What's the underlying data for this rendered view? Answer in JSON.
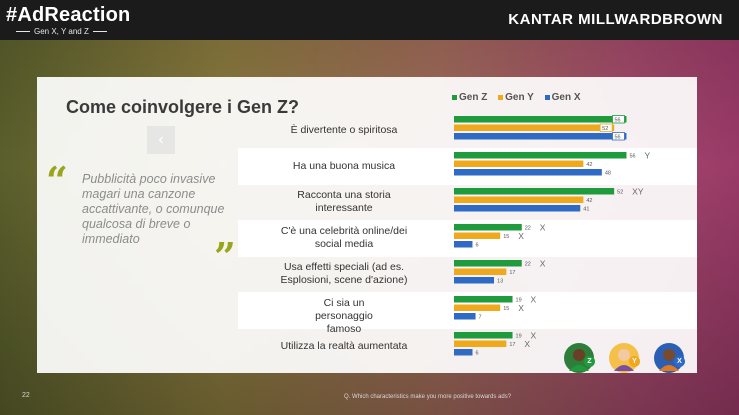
{
  "header": {
    "brand": "#AdReaction",
    "brand_sub": "Gen X, Y and Z",
    "company": "KANTAR MILLWARDBROWN"
  },
  "slide": {
    "title": "Come coinvolgere i Gen Z?",
    "quote": "Pubblicità poco invasive magari una canzone accattivante, o comunque qualcosa di breve o immediato",
    "quote_open": "“",
    "quote_close": "”",
    "nav_arrow": "‹",
    "page_number": "22",
    "footnote": "Q. Which characteristics make you more positive towards ads?"
  },
  "avatars": [
    {
      "label": "Z",
      "color": "#1f9a3c",
      "icon": "person-z-icon"
    },
    {
      "label": "Y",
      "color": "#f0a81c",
      "icon": "person-y-icon"
    },
    {
      "label": "X",
      "color": "#2f6bc4",
      "icon": "person-x-icon"
    }
  ],
  "chart_data": {
    "type": "bar",
    "orientation": "horizontal",
    "title": "",
    "xlabel": "",
    "ylabel": "",
    "xlim": [
      0,
      75
    ],
    "legend_position": "top",
    "categories": [
      "È divertente o spiritosa",
      "Ha una buona musica",
      "Racconta una storia interessante",
      "C'è una celebrità online/dei social media",
      "Usa effetti speciali (ad es. Esplosioni, scene d'azione)",
      "Ci sia un personaggio famoso",
      "Utilizza la realtà aumentata"
    ],
    "series": [
      {
        "name": "Gen Z",
        "color": "#1f9a3c",
        "values": [
          56,
          56,
          52,
          22,
          22,
          19,
          19
        ],
        "sig": [
          "",
          "Y",
          "XY",
          "X",
          "X",
          "X",
          "X"
        ]
      },
      {
        "name": "Gen Y",
        "color": "#f0a81c",
        "values": [
          52,
          42,
          42,
          15,
          17,
          15,
          17
        ],
        "sig": [
          "",
          "",
          "",
          "X",
          "",
          "X",
          "X"
        ]
      },
      {
        "name": "Gen X",
        "color": "#2f6bc4",
        "values": [
          56,
          48,
          41,
          6,
          13,
          7,
          6
        ],
        "sig": [
          "",
          "",
          "",
          "",
          "",
          "",
          ""
        ]
      }
    ],
    "boxed_labels_row": 0
  }
}
